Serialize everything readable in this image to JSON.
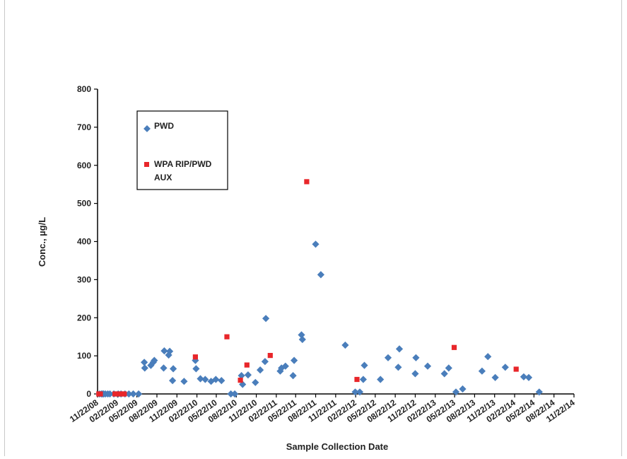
{
  "chart_data": {
    "type": "scatter",
    "title": "",
    "xlabel": "Sample Collection Date",
    "ylabel": "Conc., µg/L",
    "ylim": [
      0,
      800
    ],
    "yticks": [
      0,
      100,
      200,
      300,
      400,
      500,
      600,
      700,
      800
    ],
    "xlim": [
      "11/22/08",
      "11/22/14"
    ],
    "xticks": [
      "11/22/08",
      "02/22/09",
      "05/22/09",
      "08/22/09",
      "11/22/09",
      "02/22/10",
      "05/22/10",
      "08/22/10",
      "11/22/10",
      "02/22/11",
      "05/22/11",
      "08/22/11",
      "11/22/11",
      "02/22/12",
      "05/22/12",
      "08/22/12",
      "11/22/12",
      "02/22/13",
      "05/22/13",
      "08/22/13",
      "11/22/13",
      "02/22/14",
      "05/22/14",
      "08/22/14",
      "11/22/14"
    ],
    "grid": false,
    "legend_position": "top-left",
    "series": [
      {
        "name": "PWD",
        "marker": "diamond",
        "color": "#4a7ebb",
        "points": [
          [
            "2008-12-01",
            0
          ],
          [
            "2008-12-10",
            0
          ],
          [
            "2008-12-15",
            0
          ],
          [
            "2008-12-20",
            0
          ],
          [
            "2008-12-28",
            0
          ],
          [
            "2009-01-08",
            0
          ],
          [
            "2009-01-18",
            0
          ],
          [
            "2009-02-05",
            0
          ],
          [
            "2009-02-25",
            0
          ],
          [
            "2009-03-10",
            0
          ],
          [
            "2009-03-28",
            0
          ],
          [
            "2009-04-15",
            0
          ],
          [
            "2009-05-05",
            0
          ],
          [
            "2009-05-30",
            0
          ],
          [
            "2009-06-25",
            83
          ],
          [
            "2009-06-27",
            68
          ],
          [
            "2009-07-25",
            75
          ],
          [
            "2009-08-05",
            83
          ],
          [
            "2009-08-10",
            88
          ],
          [
            "2009-09-22",
            68
          ],
          [
            "2009-09-25",
            113
          ],
          [
            "2009-10-15",
            102
          ],
          [
            "2009-10-20",
            112
          ],
          [
            "2009-11-02",
            35
          ],
          [
            "2009-11-05",
            66
          ],
          [
            "2009-12-25",
            33
          ],
          [
            "2010-02-15",
            88
          ],
          [
            "2010-02-18",
            66
          ],
          [
            "2010-03-10",
            40
          ],
          [
            "2010-04-01",
            38
          ],
          [
            "2010-04-28",
            33
          ],
          [
            "2010-05-20",
            38
          ],
          [
            "2010-06-15",
            35
          ],
          [
            "2010-07-28",
            0
          ],
          [
            "2010-08-15",
            0
          ],
          [
            "2010-09-15",
            48
          ],
          [
            "2010-09-20",
            25
          ],
          [
            "2010-10-15",
            50
          ],
          [
            "2010-11-18",
            30
          ],
          [
            "2010-12-10",
            63
          ],
          [
            "2011-01-01",
            85
          ],
          [
            "2011-01-05",
            198
          ],
          [
            "2011-03-12",
            60
          ],
          [
            "2011-03-18",
            68
          ],
          [
            "2011-04-05",
            73
          ],
          [
            "2011-05-10",
            48
          ],
          [
            "2011-05-15",
            88
          ],
          [
            "2011-06-18",
            155
          ],
          [
            "2011-06-22",
            143
          ],
          [
            "2011-08-22",
            393
          ],
          [
            "2011-09-15",
            313
          ],
          [
            "2012-01-05",
            128
          ],
          [
            "2012-02-20",
            5
          ],
          [
            "2012-03-12",
            5
          ],
          [
            "2012-03-28",
            38
          ],
          [
            "2012-04-02",
            75
          ],
          [
            "2012-06-15",
            38
          ],
          [
            "2012-07-20",
            95
          ],
          [
            "2012-09-05",
            70
          ],
          [
            "2012-09-10",
            118
          ],
          [
            "2012-11-22",
            53
          ],
          [
            "2012-11-25",
            95
          ],
          [
            "2013-01-18",
            73
          ],
          [
            "2013-04-05",
            53
          ],
          [
            "2013-04-25",
            68
          ],
          [
            "2013-05-28",
            5
          ],
          [
            "2013-06-28",
            13
          ],
          [
            "2013-09-25",
            60
          ],
          [
            "2013-10-22",
            98
          ],
          [
            "2013-11-25",
            43
          ],
          [
            "2014-01-10",
            70
          ],
          [
            "2014-04-05",
            45
          ],
          [
            "2014-04-28",
            43
          ],
          [
            "2014-06-15",
            5
          ]
        ]
      },
      {
        "name": "WPA RIP/PWD AUX",
        "marker": "square",
        "color": "#e8262a",
        "points": [
          [
            "2008-11-28",
            0
          ],
          [
            "2008-12-05",
            0
          ],
          [
            "2009-02-10",
            0
          ],
          [
            "2009-02-20",
            0
          ],
          [
            "2009-03-05",
            0
          ],
          [
            "2009-03-15",
            0
          ],
          [
            "2009-03-25",
            0
          ],
          [
            "2010-02-15",
            97
          ],
          [
            "2010-07-10",
            150
          ],
          [
            "2010-09-10",
            36
          ],
          [
            "2010-10-10",
            76
          ],
          [
            "2011-01-25",
            101
          ],
          [
            "2011-07-12",
            557
          ],
          [
            "2012-02-28",
            38
          ],
          [
            "2013-05-20",
            122
          ],
          [
            "2014-03-01",
            65
          ]
        ]
      }
    ]
  },
  "legend": {
    "pwd_label": "PWD",
    "wpa_label_line1": "WPA RIP/PWD",
    "wpa_label_line2": "AUX"
  }
}
